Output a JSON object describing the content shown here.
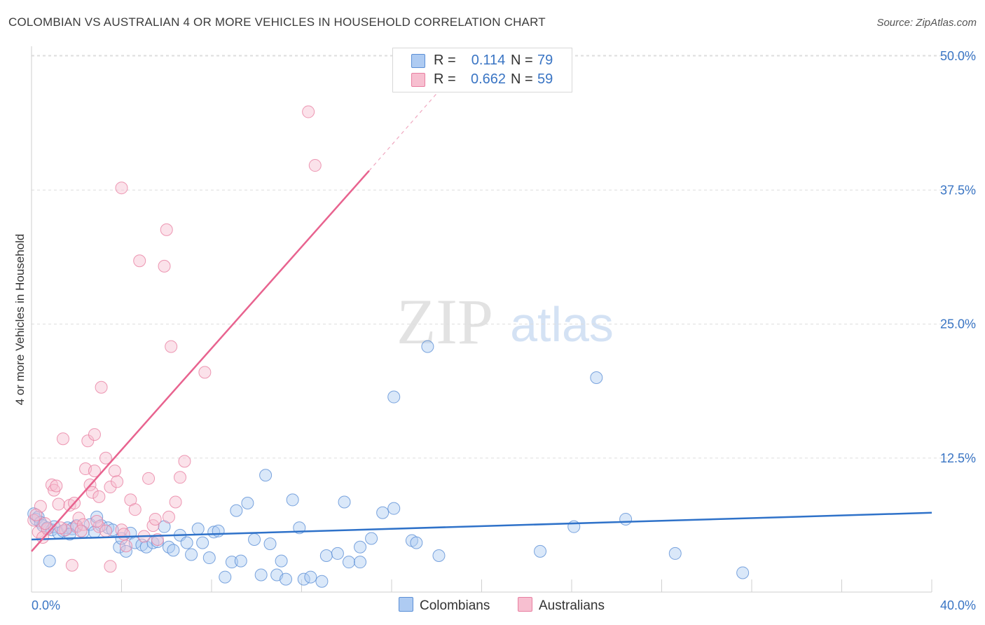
{
  "title": "COLOMBIAN VS AUSTRALIAN 4 OR MORE VEHICLES IN HOUSEHOLD CORRELATION CHART",
  "source": "Source: ZipAtlas.com",
  "watermark": {
    "zip": "ZIP",
    "atlas": "atlas"
  },
  "legend": {
    "r_label": "R =",
    "n_label": "N =",
    "items": [
      {
        "name": "Colombians",
        "r": "0.114",
        "n": "79",
        "fill": "#aecbf2",
        "stroke": "#5b8fd6"
      },
      {
        "name": "Australians",
        "r": "0.662",
        "n": "59",
        "fill": "#f7bfd0",
        "stroke": "#e87fa1"
      }
    ]
  },
  "chart_data": {
    "type": "scatter",
    "title": "COLOMBIAN VS AUSTRALIAN 4 OR MORE VEHICLES IN HOUSEHOLD CORRELATION CHART",
    "xlabel": "",
    "ylabel": "4 or more Vehicles in Household",
    "xlim": [
      0,
      40
    ],
    "ylim": [
      0,
      50
    ],
    "x_tick_labels": [
      "0.0%",
      "40.0%"
    ],
    "y_ticks": [
      {
        "value": 12.5,
        "label": "12.5%"
      },
      {
        "value": 25.0,
        "label": "25.0%"
      },
      {
        "value": 37.5,
        "label": "37.5%"
      },
      {
        "value": 50.0,
        "label": "50.0%"
      }
    ],
    "grid": true,
    "series": [
      {
        "name": "Colombians",
        "color": "#5b8fd6",
        "fill": "#aecbf2",
        "points": [
          [
            0.1,
            7.3
          ],
          [
            0.2,
            6.8
          ],
          [
            0.3,
            7.0
          ],
          [
            0.4,
            6.5
          ],
          [
            0.5,
            6.2
          ],
          [
            0.7,
            6.0
          ],
          [
            0.9,
            5.8
          ],
          [
            1.0,
            6.1
          ],
          [
            1.2,
            5.5
          ],
          [
            1.4,
            5.7
          ],
          [
            1.6,
            6.0
          ],
          [
            1.8,
            5.9
          ],
          [
            2.0,
            6.2
          ],
          [
            2.3,
            5.6
          ],
          [
            2.6,
            6.3
          ],
          [
            2.9,
            7.0
          ],
          [
            3.1,
            6.2
          ],
          [
            3.4,
            6.0
          ],
          [
            3.6,
            5.8
          ],
          [
            3.9,
            4.2
          ],
          [
            4.0,
            5.0
          ],
          [
            4.2,
            3.8
          ],
          [
            4.4,
            5.5
          ],
          [
            4.6,
            4.6
          ],
          [
            4.9,
            4.4
          ],
          [
            5.1,
            4.2
          ],
          [
            5.4,
            4.6
          ],
          [
            5.6,
            4.7
          ],
          [
            5.9,
            6.1
          ],
          [
            6.1,
            4.2
          ],
          [
            6.3,
            3.9
          ],
          [
            6.6,
            5.3
          ],
          [
            6.9,
            4.6
          ],
          [
            7.1,
            3.5
          ],
          [
            7.4,
            5.9
          ],
          [
            7.6,
            4.6
          ],
          [
            7.9,
            3.2
          ],
          [
            8.1,
            5.6
          ],
          [
            8.3,
            5.7
          ],
          [
            8.6,
            1.4
          ],
          [
            8.9,
            2.8
          ],
          [
            9.1,
            7.6
          ],
          [
            9.3,
            2.9
          ],
          [
            9.6,
            8.3
          ],
          [
            9.9,
            4.9
          ],
          [
            10.2,
            1.6
          ],
          [
            10.4,
            10.9
          ],
          [
            10.6,
            4.5
          ],
          [
            10.9,
            1.6
          ],
          [
            11.1,
            2.9
          ],
          [
            11.3,
            1.2
          ],
          [
            11.6,
            8.6
          ],
          [
            11.9,
            6.0
          ],
          [
            12.1,
            1.2
          ],
          [
            12.4,
            1.4
          ],
          [
            12.9,
            1.0
          ],
          [
            13.1,
            3.4
          ],
          [
            13.6,
            3.6
          ],
          [
            13.9,
            8.4
          ],
          [
            14.1,
            2.8
          ],
          [
            14.6,
            4.2
          ],
          [
            14.6,
            2.8
          ],
          [
            15.1,
            5.0
          ],
          [
            15.6,
            7.4
          ],
          [
            16.1,
            7.8
          ],
          [
            16.1,
            18.2
          ],
          [
            16.9,
            4.8
          ],
          [
            17.1,
            4.6
          ],
          [
            17.6,
            22.9
          ],
          [
            18.1,
            3.4
          ],
          [
            22.6,
            3.8
          ],
          [
            24.1,
            6.1
          ],
          [
            25.1,
            20.0
          ],
          [
            26.4,
            6.8
          ],
          [
            28.6,
            3.6
          ],
          [
            31.6,
            1.8
          ],
          [
            0.8,
            2.9
          ],
          [
            1.7,
            5.4
          ],
          [
            2.8,
            5.6
          ]
        ]
      },
      {
        "name": "Australians",
        "color": "#e87fa1",
        "fill": "#f7bfd0",
        "points": [
          [
            0.1,
            6.7
          ],
          [
            0.3,
            5.6
          ],
          [
            0.4,
            8.0
          ],
          [
            0.5,
            5.1
          ],
          [
            0.7,
            5.9
          ],
          [
            0.9,
            10.0
          ],
          [
            1.0,
            9.5
          ],
          [
            1.1,
            9.9
          ],
          [
            1.2,
            8.2
          ],
          [
            1.4,
            14.3
          ],
          [
            1.5,
            5.8
          ],
          [
            1.7,
            8.1
          ],
          [
            1.8,
            2.5
          ],
          [
            1.9,
            8.3
          ],
          [
            2.0,
            6.1
          ],
          [
            2.1,
            6.9
          ],
          [
            2.3,
            6.3
          ],
          [
            2.4,
            11.5
          ],
          [
            2.5,
            14.1
          ],
          [
            2.6,
            10.0
          ],
          [
            2.7,
            9.3
          ],
          [
            2.8,
            11.3
          ],
          [
            2.8,
            14.7
          ],
          [
            3.0,
            6.1
          ],
          [
            3.0,
            8.9
          ],
          [
            3.1,
            19.1
          ],
          [
            3.3,
            5.7
          ],
          [
            3.3,
            12.5
          ],
          [
            3.5,
            9.8
          ],
          [
            3.5,
            2.4
          ],
          [
            3.7,
            11.3
          ],
          [
            3.8,
            10.3
          ],
          [
            4.0,
            5.8
          ],
          [
            4.0,
            37.7
          ],
          [
            4.2,
            4.3
          ],
          [
            4.4,
            8.6
          ],
          [
            4.6,
            7.7
          ],
          [
            4.8,
            30.9
          ],
          [
            5.0,
            5.2
          ],
          [
            5.2,
            10.6
          ],
          [
            5.4,
            6.2
          ],
          [
            5.5,
            6.8
          ],
          [
            5.6,
            4.9
          ],
          [
            5.9,
            30.4
          ],
          [
            6.0,
            33.8
          ],
          [
            6.1,
            7.0
          ],
          [
            6.2,
            22.9
          ],
          [
            6.4,
            8.4
          ],
          [
            6.6,
            10.7
          ],
          [
            6.8,
            12.2
          ],
          [
            7.7,
            20.5
          ],
          [
            12.3,
            44.8
          ],
          [
            12.6,
            39.8
          ],
          [
            0.2,
            7.2
          ],
          [
            0.6,
            6.4
          ],
          [
            1.3,
            6.0
          ],
          [
            2.2,
            5.7
          ],
          [
            2.9,
            6.6
          ],
          [
            4.1,
            5.4
          ]
        ]
      }
    ],
    "trend_lines": [
      {
        "series": "Colombians",
        "from": [
          0,
          4.9
        ],
        "to": [
          40,
          7.4
        ]
      },
      {
        "series": "Australians",
        "from": [
          0,
          3.8
        ],
        "to": [
          15,
          39.3
        ],
        "dashed_to": [
          18,
          46.5
        ]
      }
    ]
  }
}
